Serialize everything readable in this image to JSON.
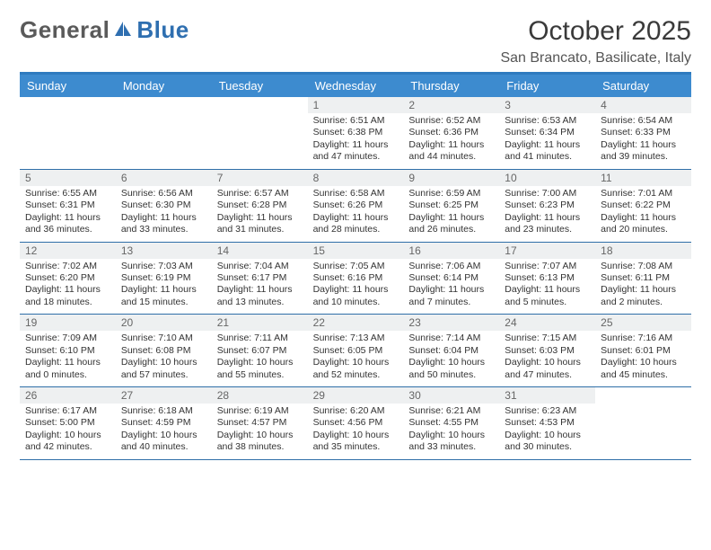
{
  "brand": {
    "part1": "General",
    "part2": "Blue"
  },
  "title": "October 2025",
  "location": "San Brancato, Basilicate, Italy",
  "colors": {
    "header_bar": "#3d8bcf",
    "border_top": "#2f7bbf",
    "row_border": "#2f6fa8",
    "daynum_bg": "#eef0f1",
    "text": "#333333",
    "logo_gray": "#6a6a6a",
    "logo_blue": "#2f6fb0"
  },
  "dow": [
    "Sunday",
    "Monday",
    "Tuesday",
    "Wednesday",
    "Thursday",
    "Friday",
    "Saturday"
  ],
  "weeks": [
    [
      {
        "n": "",
        "sr": "",
        "ss": "",
        "d1": "",
        "d2": ""
      },
      {
        "n": "",
        "sr": "",
        "ss": "",
        "d1": "",
        "d2": ""
      },
      {
        "n": "",
        "sr": "",
        "ss": "",
        "d1": "",
        "d2": ""
      },
      {
        "n": "1",
        "sr": "Sunrise: 6:51 AM",
        "ss": "Sunset: 6:38 PM",
        "d1": "Daylight: 11 hours",
        "d2": "and 47 minutes."
      },
      {
        "n": "2",
        "sr": "Sunrise: 6:52 AM",
        "ss": "Sunset: 6:36 PM",
        "d1": "Daylight: 11 hours",
        "d2": "and 44 minutes."
      },
      {
        "n": "3",
        "sr": "Sunrise: 6:53 AM",
        "ss": "Sunset: 6:34 PM",
        "d1": "Daylight: 11 hours",
        "d2": "and 41 minutes."
      },
      {
        "n": "4",
        "sr": "Sunrise: 6:54 AM",
        "ss": "Sunset: 6:33 PM",
        "d1": "Daylight: 11 hours",
        "d2": "and 39 minutes."
      }
    ],
    [
      {
        "n": "5",
        "sr": "Sunrise: 6:55 AM",
        "ss": "Sunset: 6:31 PM",
        "d1": "Daylight: 11 hours",
        "d2": "and 36 minutes."
      },
      {
        "n": "6",
        "sr": "Sunrise: 6:56 AM",
        "ss": "Sunset: 6:30 PM",
        "d1": "Daylight: 11 hours",
        "d2": "and 33 minutes."
      },
      {
        "n": "7",
        "sr": "Sunrise: 6:57 AM",
        "ss": "Sunset: 6:28 PM",
        "d1": "Daylight: 11 hours",
        "d2": "and 31 minutes."
      },
      {
        "n": "8",
        "sr": "Sunrise: 6:58 AM",
        "ss": "Sunset: 6:26 PM",
        "d1": "Daylight: 11 hours",
        "d2": "and 28 minutes."
      },
      {
        "n": "9",
        "sr": "Sunrise: 6:59 AM",
        "ss": "Sunset: 6:25 PM",
        "d1": "Daylight: 11 hours",
        "d2": "and 26 minutes."
      },
      {
        "n": "10",
        "sr": "Sunrise: 7:00 AM",
        "ss": "Sunset: 6:23 PM",
        "d1": "Daylight: 11 hours",
        "d2": "and 23 minutes."
      },
      {
        "n": "11",
        "sr": "Sunrise: 7:01 AM",
        "ss": "Sunset: 6:22 PM",
        "d1": "Daylight: 11 hours",
        "d2": "and 20 minutes."
      }
    ],
    [
      {
        "n": "12",
        "sr": "Sunrise: 7:02 AM",
        "ss": "Sunset: 6:20 PM",
        "d1": "Daylight: 11 hours",
        "d2": "and 18 minutes."
      },
      {
        "n": "13",
        "sr": "Sunrise: 7:03 AM",
        "ss": "Sunset: 6:19 PM",
        "d1": "Daylight: 11 hours",
        "d2": "and 15 minutes."
      },
      {
        "n": "14",
        "sr": "Sunrise: 7:04 AM",
        "ss": "Sunset: 6:17 PM",
        "d1": "Daylight: 11 hours",
        "d2": "and 13 minutes."
      },
      {
        "n": "15",
        "sr": "Sunrise: 7:05 AM",
        "ss": "Sunset: 6:16 PM",
        "d1": "Daylight: 11 hours",
        "d2": "and 10 minutes."
      },
      {
        "n": "16",
        "sr": "Sunrise: 7:06 AM",
        "ss": "Sunset: 6:14 PM",
        "d1": "Daylight: 11 hours",
        "d2": "and 7 minutes."
      },
      {
        "n": "17",
        "sr": "Sunrise: 7:07 AM",
        "ss": "Sunset: 6:13 PM",
        "d1": "Daylight: 11 hours",
        "d2": "and 5 minutes."
      },
      {
        "n": "18",
        "sr": "Sunrise: 7:08 AM",
        "ss": "Sunset: 6:11 PM",
        "d1": "Daylight: 11 hours",
        "d2": "and 2 minutes."
      }
    ],
    [
      {
        "n": "19",
        "sr": "Sunrise: 7:09 AM",
        "ss": "Sunset: 6:10 PM",
        "d1": "Daylight: 11 hours",
        "d2": "and 0 minutes."
      },
      {
        "n": "20",
        "sr": "Sunrise: 7:10 AM",
        "ss": "Sunset: 6:08 PM",
        "d1": "Daylight: 10 hours",
        "d2": "and 57 minutes."
      },
      {
        "n": "21",
        "sr": "Sunrise: 7:11 AM",
        "ss": "Sunset: 6:07 PM",
        "d1": "Daylight: 10 hours",
        "d2": "and 55 minutes."
      },
      {
        "n": "22",
        "sr": "Sunrise: 7:13 AM",
        "ss": "Sunset: 6:05 PM",
        "d1": "Daylight: 10 hours",
        "d2": "and 52 minutes."
      },
      {
        "n": "23",
        "sr": "Sunrise: 7:14 AM",
        "ss": "Sunset: 6:04 PM",
        "d1": "Daylight: 10 hours",
        "d2": "and 50 minutes."
      },
      {
        "n": "24",
        "sr": "Sunrise: 7:15 AM",
        "ss": "Sunset: 6:03 PM",
        "d1": "Daylight: 10 hours",
        "d2": "and 47 minutes."
      },
      {
        "n": "25",
        "sr": "Sunrise: 7:16 AM",
        "ss": "Sunset: 6:01 PM",
        "d1": "Daylight: 10 hours",
        "d2": "and 45 minutes."
      }
    ],
    [
      {
        "n": "26",
        "sr": "Sunrise: 6:17 AM",
        "ss": "Sunset: 5:00 PM",
        "d1": "Daylight: 10 hours",
        "d2": "and 42 minutes."
      },
      {
        "n": "27",
        "sr": "Sunrise: 6:18 AM",
        "ss": "Sunset: 4:59 PM",
        "d1": "Daylight: 10 hours",
        "d2": "and 40 minutes."
      },
      {
        "n": "28",
        "sr": "Sunrise: 6:19 AM",
        "ss": "Sunset: 4:57 PM",
        "d1": "Daylight: 10 hours",
        "d2": "and 38 minutes."
      },
      {
        "n": "29",
        "sr": "Sunrise: 6:20 AM",
        "ss": "Sunset: 4:56 PM",
        "d1": "Daylight: 10 hours",
        "d2": "and 35 minutes."
      },
      {
        "n": "30",
        "sr": "Sunrise: 6:21 AM",
        "ss": "Sunset: 4:55 PM",
        "d1": "Daylight: 10 hours",
        "d2": "and 33 minutes."
      },
      {
        "n": "31",
        "sr": "Sunrise: 6:23 AM",
        "ss": "Sunset: 4:53 PM",
        "d1": "Daylight: 10 hours",
        "d2": "and 30 minutes."
      },
      {
        "n": "",
        "sr": "",
        "ss": "",
        "d1": "",
        "d2": ""
      }
    ]
  ]
}
